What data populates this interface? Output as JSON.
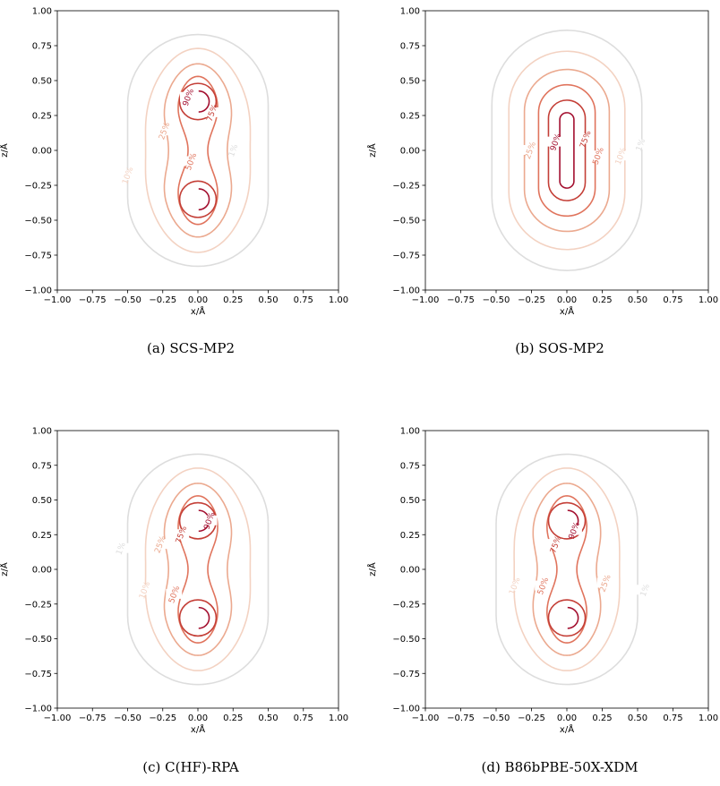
{
  "figure": {
    "panels": [
      {
        "caption": "(a) SCS-MP2",
        "chart_type": "contour",
        "xlabel": "x/Å",
        "ylabel": "z/Å",
        "xlim": [
          -1.0,
          1.0
        ],
        "ylim": [
          -1.0,
          1.0
        ],
        "xticks": [
          "−1.00",
          "−0.75",
          "−0.50",
          "−0.25",
          "0.00",
          "0.25",
          "0.50",
          "0.75",
          "1.00"
        ],
        "yticks": [
          "−1.00",
          "−0.75",
          "−0.50",
          "−0.25",
          "0.00",
          "0.25",
          "0.50",
          "0.75",
          "1.00"
        ],
        "contours": [
          {
            "level": "1%",
            "color": "#dddddd",
            "label_point": [
              0.25,
              0.0
            ]
          },
          {
            "level": "10%",
            "color": "#f3d2c2",
            "label_point": [
              -0.5,
              -0.18
            ]
          },
          {
            "level": "25%",
            "color": "#eba98f",
            "label_point": [
              -0.24,
              0.14
            ]
          },
          {
            "level": "50%",
            "color": "#e0745d",
            "label_point": [
              -0.05,
              -0.08
            ]
          },
          {
            "level": "75%",
            "color": "#c43f37",
            "label_point": [
              0.1,
              0.27
            ]
          },
          {
            "level": "90%",
            "color": "#a30f2f",
            "label_point": [
              -0.07,
              0.38
            ]
          }
        ],
        "shape": "two-lobe"
      },
      {
        "caption": "(b) SOS-MP2",
        "chart_type": "contour",
        "xlabel": "x/Å",
        "ylabel": "z/Å",
        "xlim": [
          -1.0,
          1.0
        ],
        "ylim": [
          -1.0,
          1.0
        ],
        "xticks": [
          "−1.00",
          "−0.75",
          "−0.50",
          "−0.25",
          "0.00",
          "0.25",
          "0.50",
          "0.75",
          "1.00"
        ],
        "yticks": [
          "−1.00",
          "−0.75",
          "−0.50",
          "−0.25",
          "0.00",
          "0.25",
          "0.50",
          "0.75",
          "1.00"
        ],
        "contours": [
          {
            "level": "1%",
            "color": "#dddddd",
            "label_point": [
              0.52,
              0.04
            ]
          },
          {
            "level": "10%",
            "color": "#f3d2c2",
            "label_point": [
              0.38,
              -0.04
            ]
          },
          {
            "level": "25%",
            "color": "#eba98f",
            "label_point": [
              -0.26,
              0.0
            ]
          },
          {
            "level": "50%",
            "color": "#e0745d",
            "label_point": [
              0.22,
              -0.04
            ]
          },
          {
            "level": "75%",
            "color": "#c43f37",
            "label_point": [
              0.13,
              0.08
            ]
          },
          {
            "level": "90%",
            "color": "#a30f2f",
            "label_point": [
              -0.08,
              0.06
            ]
          }
        ],
        "shape": "elongated"
      },
      {
        "caption": "(c) C(HF)-RPA",
        "chart_type": "contour",
        "xlabel": "x/Å",
        "ylabel": "z/Å",
        "xlim": [
          -1.0,
          1.0
        ],
        "ylim": [
          -1.0,
          1.0
        ],
        "xticks": [
          "−1.00",
          "−0.75",
          "−0.50",
          "−0.25",
          "0.00",
          "0.25",
          "0.50",
          "0.75",
          "1.00"
        ],
        "yticks": [
          "−1.00",
          "−0.75",
          "−0.50",
          "−0.25",
          "0.00",
          "0.25",
          "0.50",
          "0.75",
          "1.00"
        ],
        "contours": [
          {
            "level": "1%",
            "color": "#dddddd",
            "label_point": [
              -0.55,
              0.15
            ]
          },
          {
            "level": "10%",
            "color": "#f3d2c2",
            "label_point": [
              -0.38,
              -0.15
            ]
          },
          {
            "level": "25%",
            "color": "#eba98f",
            "label_point": [
              -0.27,
              0.18
            ]
          },
          {
            "level": "50%",
            "color": "#e0745d",
            "label_point": [
              -0.17,
              -0.18
            ]
          },
          {
            "level": "75%",
            "color": "#c43f37",
            "label_point": [
              -0.12,
              0.25
            ]
          },
          {
            "level": "90%",
            "color": "#a30f2f",
            "label_point": [
              0.08,
              0.35
            ]
          }
        ],
        "shape": "two-lobe"
      },
      {
        "caption": "(d) B86bPBE-50X-XDM",
        "chart_type": "contour",
        "xlabel": "x/Å",
        "ylabel": "z/Å",
        "xlim": [
          -1.0,
          1.0
        ],
        "ylim": [
          -1.0,
          1.0
        ],
        "xticks": [
          "−1.00",
          "−0.75",
          "−0.50",
          "−0.25",
          "0.00",
          "0.25",
          "0.50",
          "0.75",
          "1.00"
        ],
        "yticks": [
          "−1.00",
          "−0.75",
          "−0.50",
          "−0.25",
          "0.00",
          "0.25",
          "0.50",
          "0.75",
          "1.00"
        ],
        "contours": [
          {
            "level": "1%",
            "color": "#dddddd",
            "label_point": [
              0.55,
              -0.15
            ]
          },
          {
            "level": "10%",
            "color": "#f3d2c2",
            "label_point": [
              -0.37,
              -0.12
            ]
          },
          {
            "level": "25%",
            "color": "#eba98f",
            "label_point": [
              0.27,
              -0.1
            ]
          },
          {
            "level": "50%",
            "color": "#e0745d",
            "label_point": [
              -0.17,
              -0.12
            ]
          },
          {
            "level": "75%",
            "color": "#c43f37",
            "label_point": [
              -0.08,
              0.18
            ]
          },
          {
            "level": "90%",
            "color": "#a30f2f",
            "label_point": [
              0.05,
              0.28
            ]
          }
        ],
        "shape": "two-lobe"
      }
    ]
  }
}
